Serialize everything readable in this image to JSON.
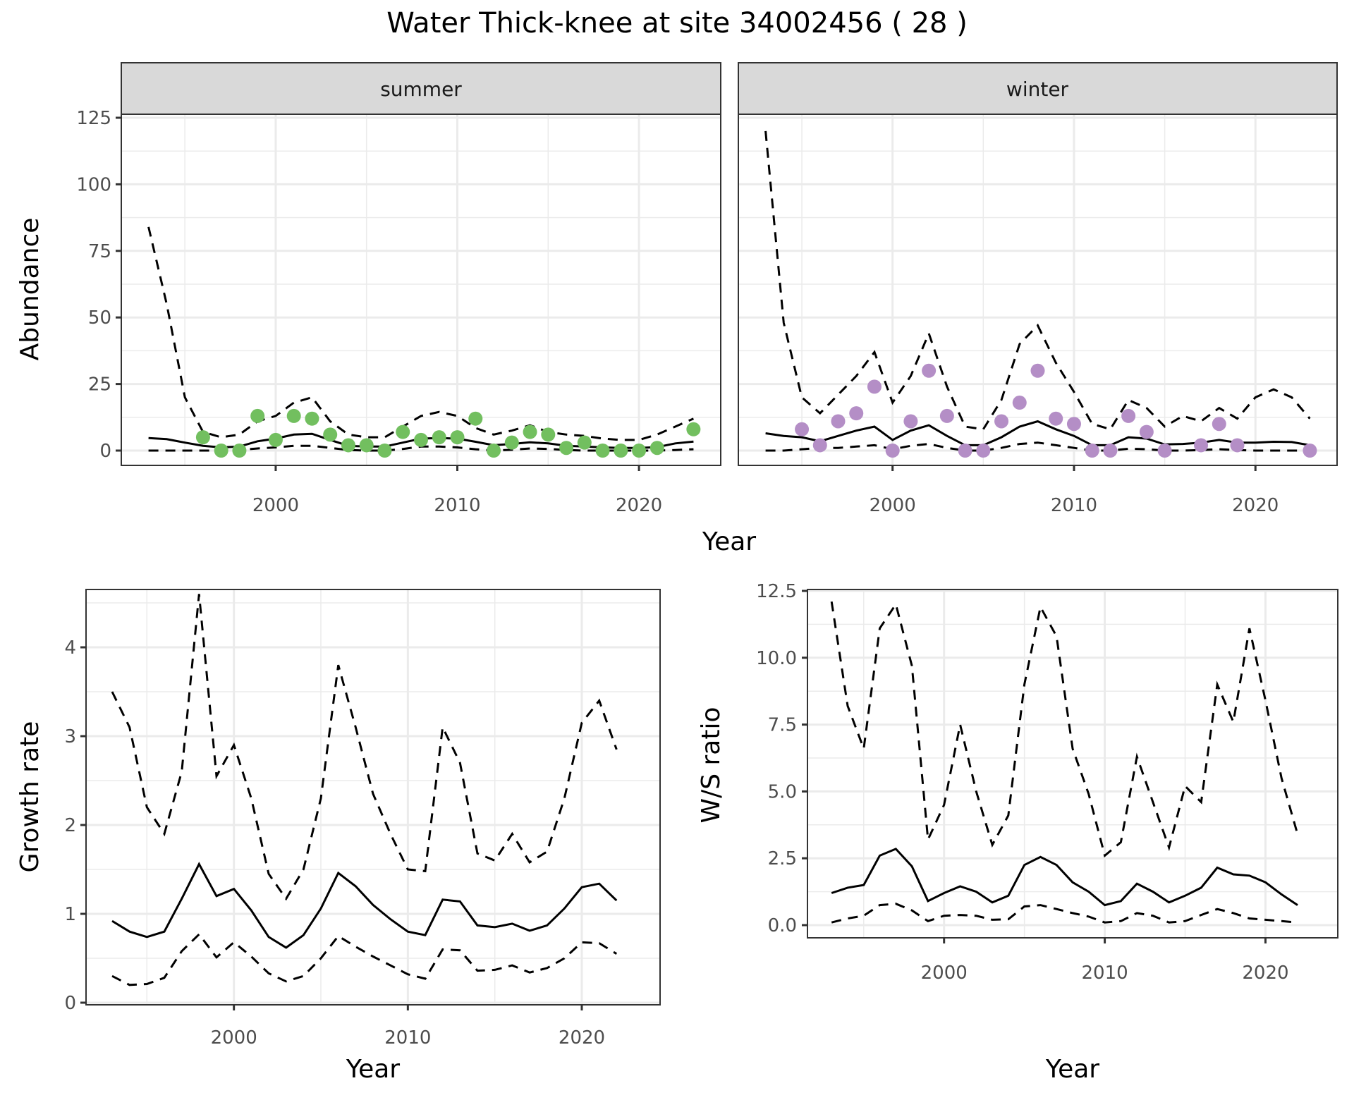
{
  "title": "Water Thick-knee at site 34002456 ( 28 )",
  "chart_data": [
    {
      "type": "line",
      "panel": "summer",
      "strip_label": "summer",
      "ylabel": "Abundance",
      "xlabel": "Year",
      "xlim": [
        1991.5,
        2024.5
      ],
      "ylim": [
        -4,
        125
      ],
      "x_ticks": [
        2000,
        2010,
        2020
      ],
      "y_ticks": [
        0,
        25,
        50,
        75,
        100,
        125
      ],
      "point_color": "#72bf5f",
      "lines_x": [
        1993,
        1994,
        1995,
        1996,
        1997,
        1998,
        1999,
        2000,
        2001,
        2002,
        2003,
        2004,
        2005,
        2006,
        2007,
        2008,
        2009,
        2010,
        2011,
        2012,
        2013,
        2014,
        2015,
        2016,
        2017,
        2018,
        2019,
        2020,
        2021,
        2022,
        2023
      ],
      "series": [
        {
          "name": "mean",
          "style": "solid",
          "values": [
            4.7,
            4.3,
            3,
            1.8,
            1.2,
            1.5,
            3.5,
            4.5,
            6,
            6.3,
            4,
            1.8,
            1.5,
            1.5,
            3,
            4.5,
            4.7,
            4.5,
            3.3,
            2,
            2.5,
            3.1,
            2.7,
            1.8,
            1.5,
            1.2,
            1,
            1,
            1.3,
            2.7,
            3.4
          ]
        },
        {
          "name": "upper",
          "style": "dashed",
          "values": [
            84,
            55,
            20,
            7,
            5,
            6,
            11,
            13,
            18,
            20,
            11,
            6,
            5,
            5,
            9,
            13,
            14.5,
            13,
            8.5,
            6,
            7.5,
            9.5,
            7,
            6,
            5.5,
            4.5,
            4,
            4,
            6,
            9,
            12
          ]
        },
        {
          "name": "lower",
          "style": "dashed",
          "values": [
            0,
            0,
            0,
            0,
            0,
            0.2,
            0.8,
            1.2,
            1.8,
            1.8,
            1,
            0.2,
            0,
            0,
            0.6,
            1.5,
            1.5,
            1.2,
            0.5,
            0,
            0.3,
            0.8,
            0.6,
            0.2,
            0,
            0,
            0,
            0,
            0,
            0.2,
            0.5
          ]
        }
      ],
      "points": {
        "x": [
          1996,
          1997,
          1998,
          1999,
          2000,
          2001,
          2002,
          2003,
          2004,
          2005,
          2006,
          2007,
          2008,
          2009,
          2010,
          2011,
          2012,
          2013,
          2014,
          2015,
          2016,
          2017,
          2018,
          2019,
          2020,
          2021,
          2023
        ],
        "y": [
          5,
          0,
          0,
          13,
          4,
          13,
          12,
          6,
          2,
          2,
          0,
          7,
          4,
          5,
          5,
          12,
          0,
          3,
          7,
          6,
          1,
          3,
          0,
          0,
          0,
          1,
          8
        ]
      }
    },
    {
      "type": "line",
      "panel": "winter",
      "strip_label": "winter",
      "xlabel": "Year",
      "xlim": [
        1991.5,
        2024.5
      ],
      "ylim": [
        -4,
        125
      ],
      "x_ticks": [
        2000,
        2010,
        2020
      ],
      "y_ticks": [
        0,
        25,
        50,
        75,
        100,
        125
      ],
      "point_color": "#b48ec6",
      "lines_x": [
        1993,
        1994,
        1995,
        1996,
        1997,
        1998,
        1999,
        2000,
        2001,
        2002,
        2003,
        2004,
        2005,
        2006,
        2007,
        2008,
        2009,
        2010,
        2011,
        2012,
        2013,
        2014,
        2015,
        2016,
        2017,
        2018,
        2019,
        2020,
        2021,
        2022,
        2023
      ],
      "series": [
        {
          "name": "mean",
          "style": "solid",
          "values": [
            6.5,
            5.5,
            5,
            3.5,
            5.5,
            7.5,
            9,
            4,
            7.5,
            9.5,
            5.5,
            2,
            2,
            5,
            9,
            11,
            8,
            5.5,
            2,
            2,
            5,
            4.5,
            2.3,
            2.5,
            3,
            4,
            3,
            3,
            3.3,
            3.2,
            2
          ]
        },
        {
          "name": "upper",
          "style": "dashed",
          "values": [
            120,
            48,
            20,
            14,
            21,
            28,
            37,
            18,
            28,
            44,
            24,
            9,
            8,
            19,
            40,
            47,
            33,
            22,
            10,
            8,
            19,
            16,
            9,
            13,
            11,
            16,
            12,
            20,
            23,
            20,
            12
          ]
        },
        {
          "name": "lower",
          "style": "dashed",
          "values": [
            0,
            0,
            0.5,
            1,
            1,
            1.5,
            2,
            0.5,
            1.8,
            2.5,
            1,
            0,
            0,
            1,
            2.5,
            3,
            2,
            1,
            0,
            0,
            0.7,
            0.5,
            0,
            0,
            0.2,
            0.5,
            0.2,
            0,
            0,
            0,
            0
          ]
        }
      ],
      "points": {
        "x": [
          1995,
          1996,
          1997,
          1998,
          1999,
          2000,
          2001,
          2002,
          2003,
          2004,
          2005,
          2006,
          2007,
          2008,
          2009,
          2010,
          2011,
          2012,
          2013,
          2014,
          2015,
          2017,
          2018,
          2019,
          2023
        ],
        "y": [
          8,
          2,
          11,
          14,
          24,
          0,
          11,
          30,
          13,
          0,
          0,
          11,
          18,
          30,
          12,
          10,
          0,
          0,
          13,
          7,
          0,
          2,
          10,
          2,
          0
        ]
      }
    },
    {
      "type": "line",
      "panel": "growth",
      "ylabel": "Growth rate",
      "xlabel": "Year",
      "xlim": [
        1991.5,
        2024.5
      ],
      "ylim": [
        0,
        4.75
      ],
      "x_ticks": [
        2000,
        2010,
        2020
      ],
      "y_ticks": [
        0,
        1,
        2,
        3,
        4
      ],
      "lines_x": [
        1993,
        1994,
        1995,
        1996,
        1997,
        1998,
        1999,
        2000,
        2001,
        2002,
        2003,
        2004,
        2005,
        2006,
        2007,
        2008,
        2009,
        2010,
        2011,
        2012,
        2013,
        2014,
        2015,
        2016,
        2017,
        2018,
        2019,
        2020,
        2021,
        2022
      ],
      "series": [
        {
          "name": "mean",
          "style": "solid",
          "values": [
            0.92,
            0.8,
            0.74,
            0.8,
            1.17,
            1.56,
            1.2,
            1.28,
            1.04,
            0.74,
            0.62,
            0.76,
            1.06,
            1.46,
            1.31,
            1.1,
            0.94,
            0.8,
            0.76,
            1.16,
            1.14,
            0.87,
            0.85,
            0.89,
            0.81,
            0.87,
            1.06,
            1.3,
            1.34,
            1.15
          ]
        },
        {
          "name": "upper",
          "style": "dashed",
          "values": [
            3.5,
            3.1,
            2.2,
            1.9,
            2.6,
            4.6,
            2.55,
            2.9,
            2.3,
            1.45,
            1.17,
            1.5,
            2.3,
            3.8,
            3.1,
            2.35,
            1.9,
            1.5,
            1.48,
            3.1,
            2.7,
            1.68,
            1.6,
            1.9,
            1.58,
            1.7,
            2.3,
            3.15,
            3.4,
            2.85
          ]
        },
        {
          "name": "lower",
          "style": "dashed",
          "values": [
            0.3,
            0.2,
            0.21,
            0.28,
            0.58,
            0.77,
            0.51,
            0.68,
            0.52,
            0.33,
            0.24,
            0.3,
            0.5,
            0.75,
            0.63,
            0.52,
            0.42,
            0.32,
            0.27,
            0.6,
            0.59,
            0.36,
            0.37,
            0.42,
            0.34,
            0.39,
            0.5,
            0.68,
            0.67,
            0.55
          ]
        }
      ]
    },
    {
      "type": "line",
      "panel": "ws_ratio",
      "ylabel": "W/S ratio",
      "xlabel": "Year",
      "xlim": [
        1991.5,
        2024.5
      ],
      "ylim": [
        -0.25,
        12.5
      ],
      "x_ticks": [
        2000,
        2010,
        2020
      ],
      "y_ticks": [
        0.0,
        2.5,
        5.0,
        7.5,
        10.0,
        12.5
      ],
      "y_tick_labels": [
        "0.0",
        "2.5",
        "5.0",
        "7.5",
        "10.0",
        "12.5"
      ],
      "lines_x": [
        1993,
        1994,
        1995,
        1996,
        1997,
        1998,
        1999,
        2000,
        2001,
        2002,
        2003,
        2004,
        2005,
        2006,
        2007,
        2008,
        2009,
        2010,
        2011,
        2012,
        2013,
        2014,
        2015,
        2016,
        2017,
        2018,
        2019,
        2020,
        2021,
        2022
      ],
      "series": [
        {
          "name": "mean",
          "style": "solid",
          "values": [
            1.2,
            1.4,
            1.5,
            2.6,
            2.85,
            2.2,
            0.9,
            1.2,
            1.45,
            1.25,
            0.85,
            1.1,
            2.25,
            2.55,
            2.25,
            1.6,
            1.25,
            0.75,
            0.9,
            1.55,
            1.25,
            0.85,
            1.1,
            1.4,
            2.15,
            1.9,
            1.85,
            1.6,
            1.15,
            0.75
          ]
        },
        {
          "name": "upper",
          "style": "dashed",
          "values": [
            12.1,
            8.2,
            6.6,
            11.1,
            12.0,
            9.7,
            3.2,
            4.5,
            7.5,
            5.0,
            3.0,
            4.1,
            9.0,
            11.9,
            10.8,
            6.6,
            4.9,
            2.6,
            3.1,
            6.3,
            4.6,
            2.9,
            5.2,
            4.6,
            9.0,
            7.6,
            11.1,
            8.4,
            5.5,
            3.4
          ]
        },
        {
          "name": "lower",
          "style": "dashed",
          "values": [
            0.1,
            0.25,
            0.35,
            0.75,
            0.8,
            0.55,
            0.15,
            0.35,
            0.38,
            0.35,
            0.2,
            0.22,
            0.7,
            0.75,
            0.6,
            0.45,
            0.32,
            0.1,
            0.15,
            0.45,
            0.35,
            0.1,
            0.15,
            0.38,
            0.6,
            0.45,
            0.25,
            0.2,
            0.15,
            0.1
          ]
        }
      ]
    }
  ]
}
